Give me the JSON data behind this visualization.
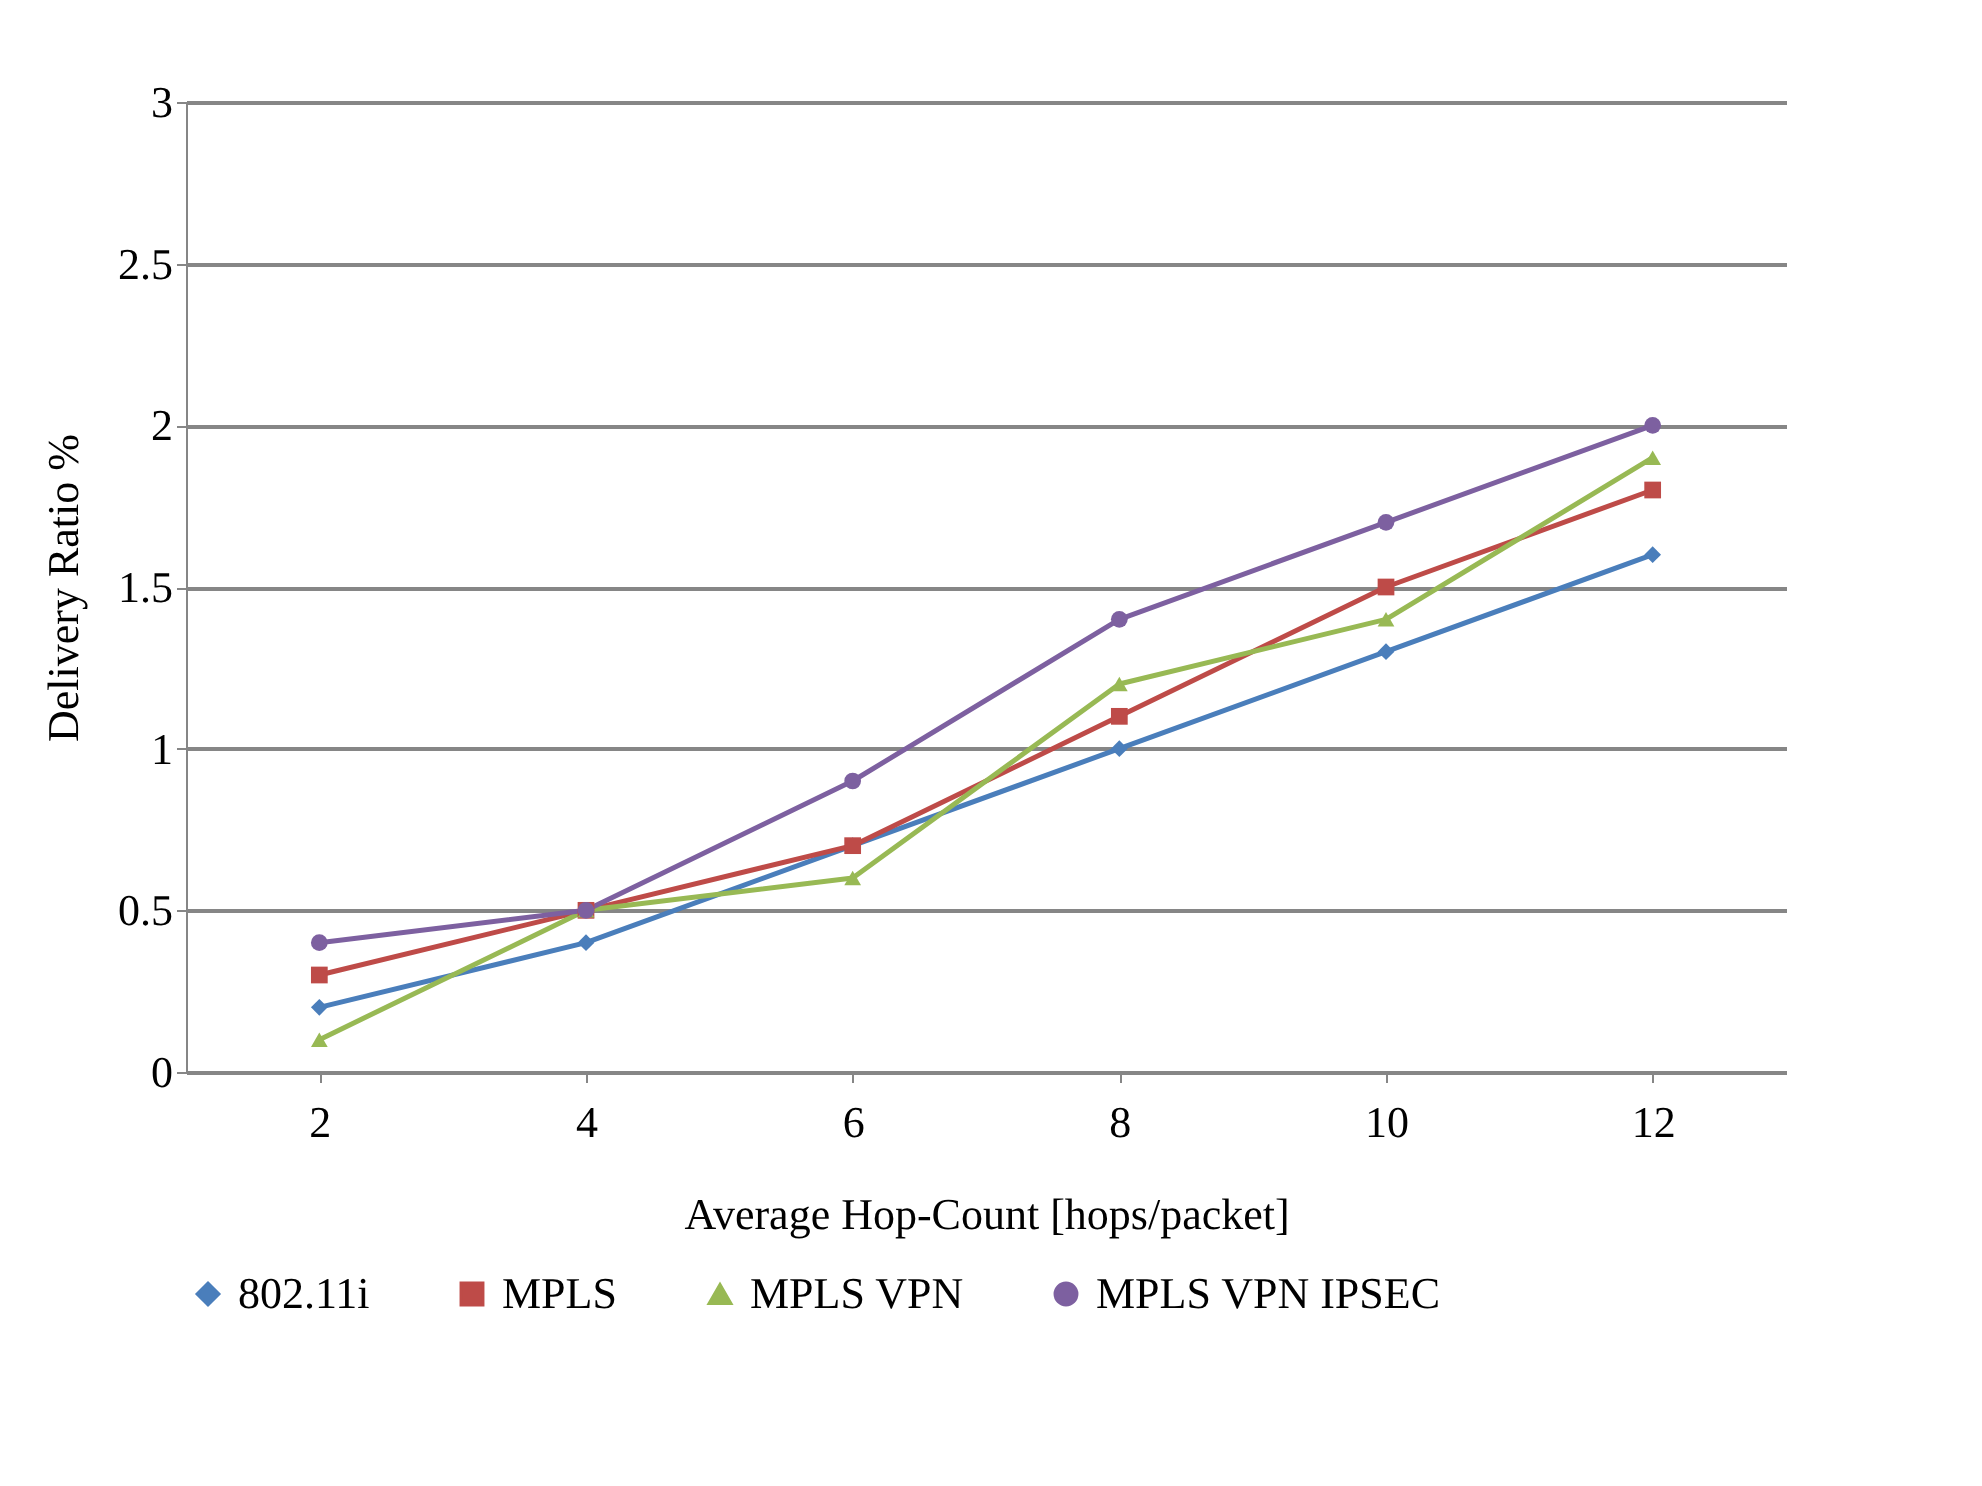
{
  "chart_data": {
    "type": "line",
    "xlabel": "Average Hop-Count [hops/packet]",
    "ylabel": "Delivery Ratio %",
    "categories": [
      "2",
      "4",
      "6",
      "8",
      "10",
      "12"
    ],
    "series": [
      {
        "name": "802.11i",
        "color": "#4a7ebb",
        "marker": "diamond",
        "values": [
          0.2,
          0.4,
          0.7,
          1.0,
          1.3,
          1.6
        ]
      },
      {
        "name": "MPLS",
        "color": "#be4b48",
        "marker": "square",
        "values": [
          0.3,
          0.5,
          0.7,
          1.1,
          1.5,
          1.8
        ]
      },
      {
        "name": "MPLS VPN",
        "color": "#98b954",
        "marker": "triangle",
        "values": [
          0.1,
          0.5,
          0.6,
          1.2,
          1.4,
          1.9
        ]
      },
      {
        "name": "MPLS VPN IPSEC",
        "color": "#7d60a0",
        "marker": "circle",
        "values": [
          0.4,
          0.5,
          0.9,
          1.4,
          1.7,
          2.0
        ]
      }
    ],
    "ylim": [
      0,
      3
    ],
    "yticks": [
      0,
      0.5,
      1,
      1.5,
      2,
      2.5,
      3
    ],
    "grid": "y",
    "legend": "bottom",
    "line_style": "solid"
  }
}
